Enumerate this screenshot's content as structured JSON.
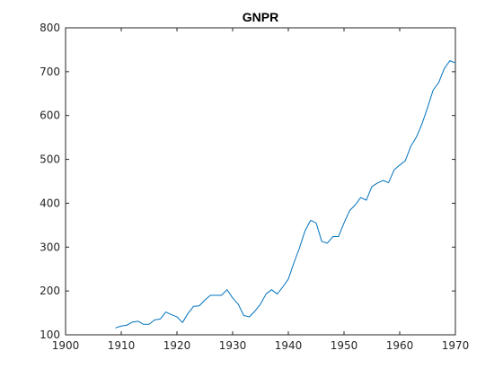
{
  "chart_data": {
    "type": "line",
    "title": "GNPR",
    "xlabel": "",
    "ylabel": "",
    "xlim": [
      1900,
      1970
    ],
    "ylim": [
      100,
      800
    ],
    "xticks": [
      1900,
      1910,
      1920,
      1930,
      1940,
      1950,
      1960,
      1970
    ],
    "yticks": [
      100,
      200,
      300,
      400,
      500,
      600,
      700,
      800
    ],
    "grid": false,
    "legend": "none",
    "series_color": "#0072BD",
    "series": [
      {
        "x": [
          1909,
          1910,
          1911,
          1912,
          1913,
          1914,
          1915,
          1916,
          1917,
          1918,
          1919,
          1920,
          1921,
          1922,
          1923,
          1924,
          1925,
          1926,
          1927,
          1928,
          1929,
          1930,
          1931,
          1932,
          1933,
          1934,
          1935,
          1936,
          1937,
          1938,
          1939,
          1940,
          1941,
          1942,
          1943,
          1944,
          1945,
          1946,
          1947,
          1948,
          1949,
          1950,
          1951,
          1952,
          1953,
          1954,
          1955,
          1956,
          1957,
          1958,
          1959,
          1960,
          1961,
          1962,
          1963,
          1964,
          1965,
          1966,
          1967,
          1968,
          1969,
          1970
        ],
        "y": [
          116,
          120,
          122,
          129,
          131,
          124,
          124,
          134,
          136,
          152,
          146,
          141,
          128,
          149,
          165,
          166,
          179,
          190,
          190,
          190,
          203,
          184,
          170,
          144,
          141,
          154,
          170,
          193,
          203,
          193,
          209,
          227,
          264,
          298,
          337,
          361,
          355,
          313,
          309,
          324,
          324,
          355,
          383,
          396,
          413,
          407,
          438,
          446,
          452,
          447,
          476,
          487,
          497,
          530,
          551,
          581,
          618,
          658,
          675,
          707,
          725,
          720
        ]
      }
    ]
  }
}
